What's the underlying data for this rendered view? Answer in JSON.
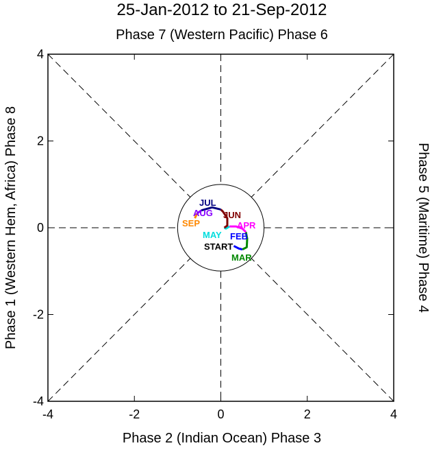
{
  "chart_data": {
    "type": "line",
    "title": "25-Jan-2012 to 21-Sep-2012",
    "top_label": "Phase 7 (Western Pacific) Phase 6",
    "bottom_label": "Phase 2 (Indian Ocean) Phase 3",
    "left_label": "Phase 1 (Western Hem, Africa) Phase 8",
    "right_label": "Phase 5 (Maritime) Phase 4",
    "xlim": [
      -4,
      4
    ],
    "ylim": [
      -4,
      4
    ],
    "xticks": [
      "-4",
      "-2",
      "0",
      "2",
      "4"
    ],
    "yticks": [
      "-4",
      "-2",
      "0",
      "2",
      "4"
    ],
    "start_label": "START",
    "series": [
      {
        "name": "FEB",
        "color": "#0000ff",
        "points": [
          [
            0.3,
            -0.42
          ],
          [
            0.42,
            -0.48
          ],
          [
            0.5,
            -0.5
          ]
        ],
        "label_at": [
          0.05,
          -0.4
        ]
      },
      {
        "name": "MAR",
        "color": "#008800",
        "points": [
          [
            0.5,
            -0.5
          ],
          [
            0.6,
            -0.45
          ],
          [
            0.61,
            -0.25
          ],
          [
            0.58,
            -0.1
          ]
        ],
        "label_at": [
          0.5,
          -0.65
        ]
      },
      {
        "name": "APR",
        "color": "#ff00ff",
        "points": [
          [
            0.58,
            -0.1
          ],
          [
            0.5,
            -0.02
          ],
          [
            0.35,
            0.03
          ],
          [
            0.2,
            0.03
          ]
        ],
        "label_at": [
          0.22,
          -0.05
        ]
      },
      {
        "name": "MAY",
        "color": "#00dddd",
        "points": [
          [
            0.2,
            0.03
          ],
          [
            0.12,
            -0.02
          ],
          [
            0.08,
            0.0
          ]
        ],
        "label_at": [
          -0.05,
          -0.05
        ]
      },
      {
        "name": "JUN",
        "color": "#800000",
        "points": [
          [
            0.08,
            0.0
          ],
          [
            0.15,
            0.05
          ],
          [
            0.15,
            0.22
          ],
          [
            0.05,
            0.37
          ],
          [
            0.0,
            0.42
          ]
        ],
        "label_at": [
          0.1,
          0.03
        ]
      },
      {
        "name": "JUL",
        "color": "#000080",
        "points": [
          [
            0.0,
            0.42
          ],
          [
            -0.2,
            0.47
          ],
          [
            -0.45,
            0.4
          ]
        ],
        "label_at": [
          -0.5,
          0.15
        ]
      },
      {
        "name": "AUG",
        "color": "#8800ff",
        "points": [
          [
            -0.45,
            0.4
          ],
          [
            -0.55,
            0.33
          ]
        ],
        "label_at": [
          -0.55,
          0.05
        ]
      },
      {
        "name": "SEP",
        "color": "#ff8800",
        "points": [
          [
            -0.55,
            0.33
          ],
          [
            -0.6,
            0.22
          ]
        ],
        "label_at": [
          -0.7,
          -0.05
        ]
      }
    ]
  }
}
